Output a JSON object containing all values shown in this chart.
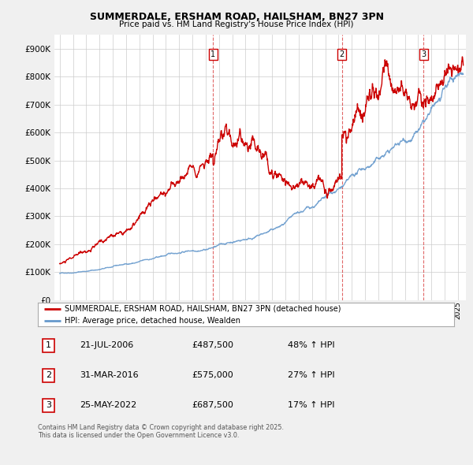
{
  "title": "SUMMERDALE, ERSHAM ROAD, HAILSHAM, BN27 3PN",
  "subtitle": "Price paid vs. HM Land Registry's House Price Index (HPI)",
  "legend_label_red": "SUMMERDALE, ERSHAM ROAD, HAILSHAM, BN27 3PN (detached house)",
  "legend_label_blue": "HPI: Average price, detached house, Wealden",
  "transactions": [
    {
      "num": 1,
      "date_label": "21-JUL-2006",
      "price": 487500,
      "pct": "48%",
      "x_year": 2006.55
    },
    {
      "num": 2,
      "date_label": "31-MAR-2016",
      "price": 575000,
      "pct": "27%",
      "x_year": 2016.25
    },
    {
      "num": 3,
      "date_label": "25-MAY-2022",
      "price": 687500,
      "pct": "17%",
      "x_year": 2022.4
    }
  ],
  "footer_line1": "Contains HM Land Registry data © Crown copyright and database right 2025.",
  "footer_line2": "This data is licensed under the Open Government Licence v3.0.",
  "ylim": [
    0,
    950000
  ],
  "yticks": [
    0,
    100000,
    200000,
    300000,
    400000,
    500000,
    600000,
    700000,
    800000,
    900000
  ],
  "xlim_start": 1994.6,
  "xlim_end": 2025.6,
  "bg_color": "#f0f0f0",
  "plot_bg_color": "#ffffff",
  "red_color": "#cc0000",
  "blue_color": "#6699cc",
  "grid_color": "#cccccc"
}
